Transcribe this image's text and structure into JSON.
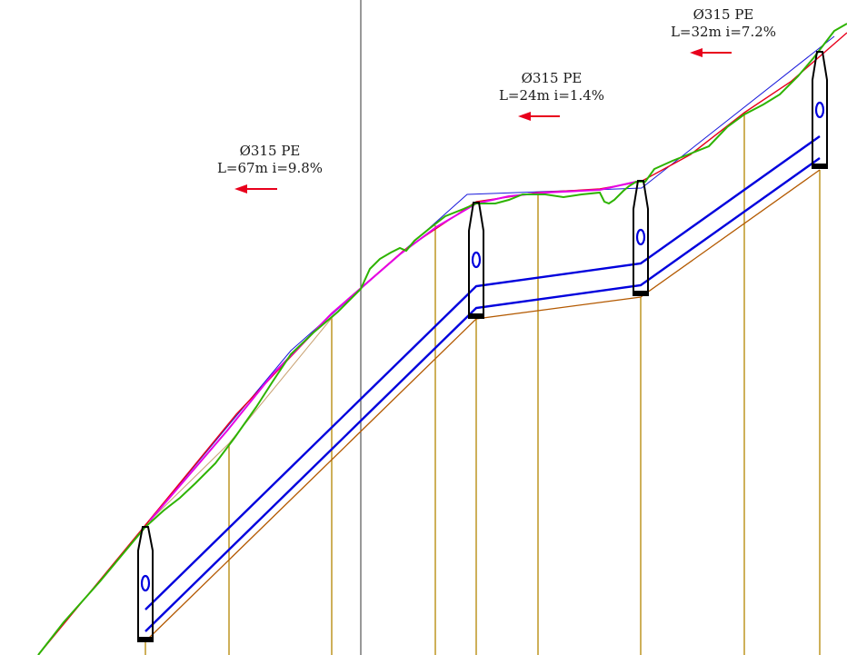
{
  "sections": [
    {
      "pipe": "Ø315 PE",
      "length_slope": "L=67m i=9.8%",
      "flow_direction": "left"
    },
    {
      "pipe": "Ø315 PE",
      "length_slope": "L=24m i=1.4%",
      "flow_direction": "left"
    },
    {
      "pipe": "Ø315 PE",
      "length_slope": "L=32m i=7.2%",
      "flow_direction": "left"
    }
  ],
  "colors": {
    "terrain": "#2db300",
    "design_grade": "#e8001c",
    "existing_grade": "#e600e6",
    "pipe": "#0000dd",
    "trench_bottom": "#b35900",
    "station_lines": "#b38600",
    "manhole": "#000000",
    "reference_line": "#555555",
    "arrow": "#e8001c"
  },
  "icons": [
    "manhole-icon",
    "flow-arrow-icon"
  ]
}
